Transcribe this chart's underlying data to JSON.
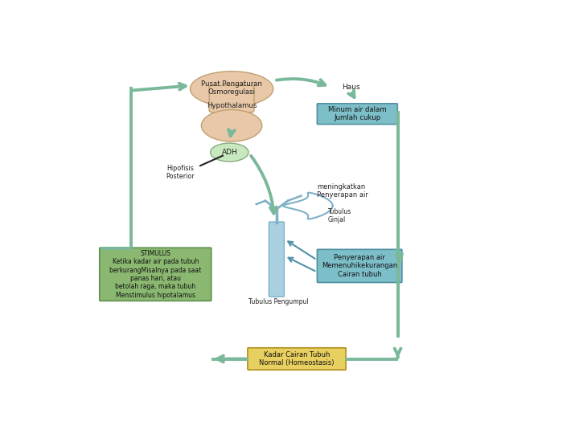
{
  "bg_color": "#ffffff",
  "arrow_color": "#7ab89a",
  "hypothalamus_fill": "#e8c8a8",
  "box_teal": "#7dbfc8",
  "box_green": "#8ab870",
  "box_yellow": "#e8d060",
  "kidney_fill": "#a8d0e0",
  "adh_fill": "#c8e8c0",
  "text_dark": "#333333",
  "pusat_text": "Pusat Pengaturan\nOsmoregulasi",
  "hypothalamus_text": "Hypothalamus",
  "haus_text": "Haus",
  "minum_text": "Minum air dalam\nJumlah cukup",
  "adh_text": "ADH",
  "hipofisis_text": "Hipofisis\nPosterior",
  "meningkatkan_text": "meningkatkan\nPenyerapan air",
  "tubulus_ginjal_text": "Tubulus\nGinjal",
  "penyerapan_text": "Penyerapan air\nMemenuhikekurangan\nCairan tubuh",
  "tubulus_pengumpul_text": "Tubulus Pengumpul",
  "stimulus_text": "STIMULUS\nKetika kadar air pada tubuh\nberkurangMisalnya pada saat\npanas hari, atau\nbetolah raga, maka tubuh\nMenstimulus hipotalamus",
  "kadar_text": "Kadar Cairan Tubuh\nNormal (Homeostasis)"
}
